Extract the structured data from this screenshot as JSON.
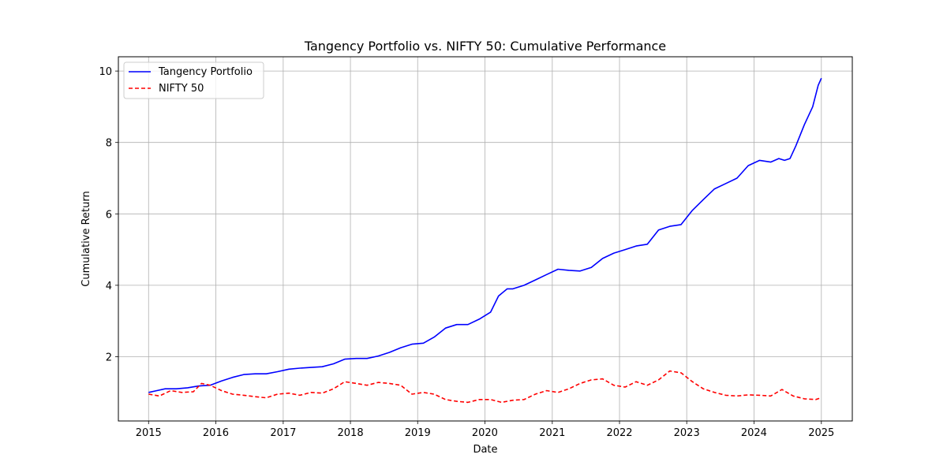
{
  "chart_data": {
    "type": "line",
    "title": "Tangency Portfolio vs. NIFTY 50: Cumulative Performance",
    "xlabel": "Date",
    "ylabel": "Cumulative Return",
    "xlim": [
      "2014-07-21",
      "2025-06-18"
    ],
    "ylim": [
      0.2,
      10.4
    ],
    "x_ticks": [
      "2015",
      "2016",
      "2017",
      "2018",
      "2019",
      "2020",
      "2021",
      "2022",
      "2023",
      "2024",
      "2025"
    ],
    "y_ticks": [
      2,
      4,
      6,
      8,
      10
    ],
    "grid": true,
    "legend_position": "top-left",
    "series": [
      {
        "name": "Tangency Portfolio",
        "color": "#0000ff",
        "style": "solid",
        "x": [
          "2015-01-01",
          "2015-02-15",
          "2015-04-01",
          "2015-06-01",
          "2015-08-01",
          "2015-10-01",
          "2015-12-01",
          "2016-02-01",
          "2016-04-01",
          "2016-06-01",
          "2016-08-01",
          "2016-10-01",
          "2016-12-01",
          "2017-02-01",
          "2017-04-01",
          "2017-06-01",
          "2017-08-01",
          "2017-10-01",
          "2017-12-01",
          "2018-02-01",
          "2018-04-01",
          "2018-06-01",
          "2018-08-01",
          "2018-10-01",
          "2018-12-01",
          "2019-02-01",
          "2019-04-01",
          "2019-06-01",
          "2019-08-01",
          "2019-10-01",
          "2019-12-01",
          "2020-02-01",
          "2020-03-15",
          "2020-05-01",
          "2020-06-01",
          "2020-08-01",
          "2020-10-01",
          "2020-12-01",
          "2021-02-01",
          "2021-04-01",
          "2021-06-01",
          "2021-08-01",
          "2021-10-01",
          "2021-12-01",
          "2022-02-01",
          "2022-04-01",
          "2022-06-01",
          "2022-08-01",
          "2022-10-01",
          "2022-12-01",
          "2023-02-01",
          "2023-04-01",
          "2023-06-01",
          "2023-08-01",
          "2023-10-01",
          "2023-12-01",
          "2024-02-01",
          "2024-04-01",
          "2024-05-15",
          "2024-06-15",
          "2024-07-15",
          "2024-08-15",
          "2024-10-01",
          "2024-11-15",
          "2024-12-15",
          "2025-01-01"
        ],
        "values": [
          1.0,
          1.05,
          1.1,
          1.1,
          1.13,
          1.18,
          1.2,
          1.32,
          1.42,
          1.5,
          1.52,
          1.52,
          1.58,
          1.65,
          1.68,
          1.7,
          1.72,
          1.8,
          1.93,
          1.95,
          1.95,
          2.02,
          2.12,
          2.25,
          2.35,
          2.38,
          2.55,
          2.8,
          2.9,
          2.9,
          3.05,
          3.25,
          3.7,
          3.9,
          3.9,
          4.0,
          4.15,
          4.3,
          4.45,
          4.42,
          4.4,
          4.5,
          4.75,
          4.9,
          5.0,
          5.1,
          5.15,
          5.55,
          5.65,
          5.7,
          6.1,
          6.4,
          6.7,
          6.85,
          7.0,
          7.35,
          7.5,
          7.45,
          7.55,
          7.5,
          7.55,
          7.9,
          8.5,
          9.0,
          9.6,
          9.8
        ]
      },
      {
        "name": "NIFTY 50",
        "color": "#ff0000",
        "style": "dashed",
        "x": [
          "2015-01-01",
          "2015-03-01",
          "2015-05-01",
          "2015-07-01",
          "2015-09-01",
          "2015-10-15",
          "2015-12-01",
          "2016-02-01",
          "2016-04-01",
          "2016-06-01",
          "2016-08-01",
          "2016-10-01",
          "2016-12-01",
          "2017-02-01",
          "2017-04-01",
          "2017-06-01",
          "2017-08-01",
          "2017-10-01",
          "2017-12-01",
          "2018-02-01",
          "2018-04-01",
          "2018-06-01",
          "2018-08-01",
          "2018-10-01",
          "2018-12-01",
          "2019-02-01",
          "2019-04-01",
          "2019-06-01",
          "2019-08-01",
          "2019-10-01",
          "2019-12-01",
          "2020-02-01",
          "2020-04-01",
          "2020-06-01",
          "2020-08-01",
          "2020-10-01",
          "2020-12-01",
          "2021-02-01",
          "2021-04-01",
          "2021-06-01",
          "2021-08-01",
          "2021-10-01",
          "2021-12-01",
          "2022-02-01",
          "2022-04-01",
          "2022-06-01",
          "2022-08-01",
          "2022-10-01",
          "2022-12-01",
          "2023-02-01",
          "2023-04-01",
          "2023-06-01",
          "2023-08-01",
          "2023-10-01",
          "2023-12-01",
          "2024-02-01",
          "2024-04-01",
          "2024-06-01",
          "2024-08-01",
          "2024-10-01",
          "2024-12-01",
          "2025-01-01"
        ],
        "values": [
          0.95,
          0.9,
          1.05,
          1.0,
          1.02,
          1.25,
          1.2,
          1.05,
          0.95,
          0.92,
          0.88,
          0.85,
          0.95,
          0.98,
          0.92,
          1.0,
          0.98,
          1.1,
          1.3,
          1.25,
          1.2,
          1.28,
          1.25,
          1.2,
          0.95,
          1.0,
          0.95,
          0.8,
          0.75,
          0.72,
          0.8,
          0.8,
          0.72,
          0.78,
          0.8,
          0.95,
          1.05,
          1.0,
          1.1,
          1.25,
          1.35,
          1.38,
          1.2,
          1.15,
          1.3,
          1.2,
          1.35,
          1.6,
          1.55,
          1.3,
          1.1,
          1.0,
          0.92,
          0.9,
          0.93,
          0.92,
          0.9,
          1.08,
          0.9,
          0.82,
          0.8,
          0.85
        ]
      }
    ]
  }
}
